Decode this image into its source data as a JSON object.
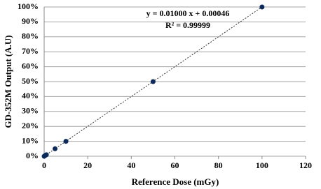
{
  "chart_data": {
    "type": "scatter",
    "x_label": "Reference Dose (mGy)",
    "y_label": "GD-352M Output (A.U)",
    "annotations": [
      "y = 0.01000 x + 0.00046",
      "R² = 0.99999"
    ],
    "x": [
      0,
      0.5,
      1,
      5,
      10,
      50,
      100
    ],
    "values": [
      0,
      0.5,
      1,
      5,
      10,
      50,
      100
    ],
    "color": "#0d2a5c",
    "trendline": true,
    "xlim": [
      0,
      120
    ],
    "xticks": [
      0,
      20,
      40,
      60,
      80,
      100,
      120
    ],
    "ylim": [
      0,
      100
    ],
    "yticks": [
      {
        "value": 0,
        "label": "0%"
      },
      {
        "value": 10,
        "label": "10%"
      },
      {
        "value": 20,
        "label": "20%"
      },
      {
        "value": 30,
        "label": "30%"
      },
      {
        "value": 40,
        "label": "40%"
      },
      {
        "value": 50,
        "label": "50%"
      },
      {
        "value": 60,
        "label": "60%"
      },
      {
        "value": 70,
        "label": "70%"
      },
      {
        "value": 80,
        "label": "80%"
      },
      {
        "value": 90,
        "label": "90%"
      },
      {
        "value": 100,
        "label": "100%"
      }
    ],
    "grid": true
  }
}
